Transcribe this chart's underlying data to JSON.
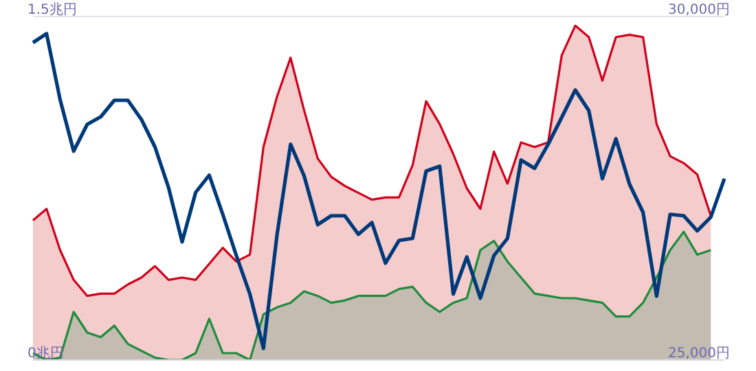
{
  "chart_data": {
    "type": "area",
    "categories": [
      null,
      null,
      null,
      null,
      null,
      null,
      null,
      null,
      null,
      null,
      null,
      null,
      null,
      null,
      null,
      null,
      null,
      null,
      null,
      null,
      null,
      null,
      null,
      null,
      null,
      null,
      null,
      null,
      null,
      null,
      null,
      null,
      null,
      null,
      null,
      null,
      null,
      null,
      null,
      null,
      null,
      null,
      null,
      null,
      null,
      null,
      null,
      null,
      null,
      null,
      null,
      null
    ],
    "series": [
      {
        "color": "#d0021b",
        "values": [
          0.61,
          0.66,
          0.48,
          0.35,
          0.28,
          0.29,
          0.29,
          0.33,
          0.36,
          0.41,
          0.35,
          0.36,
          0.35,
          0.42,
          0.49,
          0.43,
          0.46,
          0.93,
          1.15,
          1.32,
          1.09,
          0.88,
          0.8,
          0.76,
          0.73,
          0.7,
          0.71,
          0.71,
          0.85,
          1.13,
          1.03,
          0.9,
          0.75,
          0.66,
          0.91,
          0.77,
          0.95,
          0.93,
          0.95,
          1.33,
          1.46,
          1.41,
          1.22,
          1.41,
          1.42,
          1.41,
          1.03,
          0.89,
          0.86,
          0.81,
          0.63,
          null
        ]
      },
      {
        "color": "#1e8c3c",
        "values": [
          0.03,
          0.0,
          0.01,
          0.21,
          0.12,
          0.1,
          0.15,
          0.07,
          0.04,
          0.01,
          0.0,
          0.0,
          0.03,
          0.18,
          0.03,
          0.03,
          0.0,
          0.2,
          0.23,
          0.25,
          0.3,
          0.28,
          0.25,
          0.26,
          0.28,
          0.28,
          0.28,
          0.31,
          0.32,
          0.25,
          0.21,
          0.25,
          0.27,
          0.48,
          0.52,
          0.43,
          0.36,
          0.29,
          0.28,
          0.27,
          0.27,
          0.26,
          0.25,
          0.19,
          0.19,
          0.25,
          0.36,
          0.48,
          0.56,
          0.46,
          0.48,
          null
        ]
      },
      {
        "type": "line",
        "axis": "y2",
        "color": "#003a7a",
        "values": [
          29620,
          29750,
          28790,
          28040,
          28430,
          28540,
          28780,
          28780,
          28500,
          28100,
          27510,
          26720,
          27440,
          27690,
          27120,
          26520,
          25960,
          25170,
          26820,
          28140,
          27680,
          26970,
          27100,
          27100,
          26830,
          27000,
          26410,
          26740,
          26770,
          27750,
          27820,
          25960,
          26500,
          25900,
          26520,
          26770,
          27910,
          27790,
          28140,
          28530,
          28930,
          28630,
          27640,
          28220,
          27560,
          27150,
          25930,
          27120,
          27100,
          26880,
          27080,
          27640
        ]
      }
    ],
    "ylim": [
      0,
      1.5
    ],
    "yticks": [
      {
        "value": 0,
        "label": "0兆円"
      },
      {
        "value": 1.5,
        "label": "1.5兆円"
      }
    ],
    "y2lim": [
      25000,
      30000
    ],
    "y2ticks": [
      {
        "value": 25000,
        "label": "25,000円"
      },
      {
        "value": 30000,
        "label": "30,000円"
      }
    ],
    "grid": "y",
    "legend": false,
    "marker": "none"
  }
}
